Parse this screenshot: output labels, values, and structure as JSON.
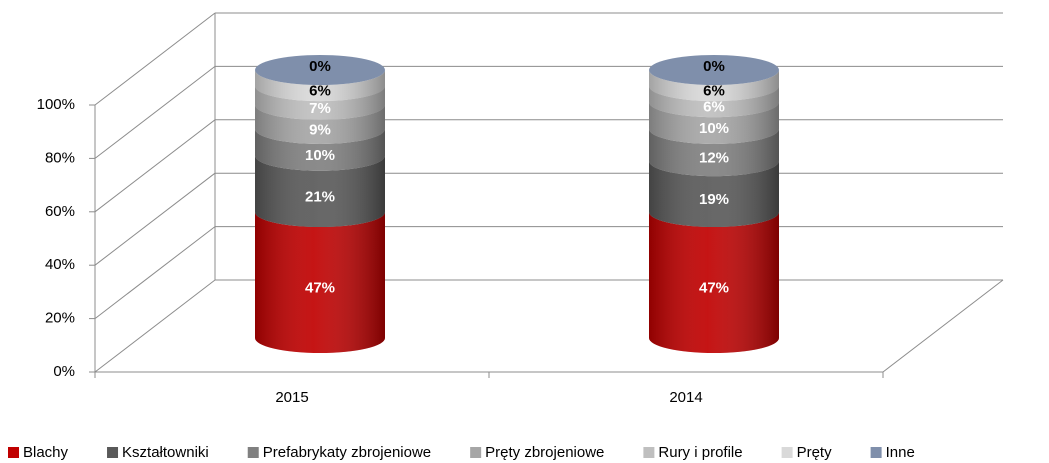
{
  "chart_data": {
    "type": "bar3d_cylinder_stacked",
    "categories": [
      "2015",
      "2014"
    ],
    "series": [
      {
        "name": "Blachy",
        "color": "#c00000",
        "label_color": "#ffffff",
        "values": [
          47,
          47
        ],
        "value_labels": [
          "47%",
          "47%"
        ]
      },
      {
        "name": "Kształtowniki",
        "color": "#595959",
        "label_color": "#ffffff",
        "values": [
          21,
          19
        ],
        "value_labels": [
          "21%",
          "19%"
        ]
      },
      {
        "name": "Prefabrykaty zbrojeniowe",
        "color": "#808080",
        "label_color": "#ffffff",
        "values": [
          10,
          12
        ],
        "value_labels": [
          "10%",
          "12%"
        ]
      },
      {
        "name": "Pręty zbrojeniowe",
        "color": "#a6a6a6",
        "label_color": "#ffffff",
        "values": [
          9,
          10
        ],
        "value_labels": [
          "9%",
          "10%"
        ]
      },
      {
        "name": "Rury i profile",
        "color": "#bfbfbf",
        "label_color": "#ffffff",
        "values": [
          7,
          6
        ],
        "value_labels": [
          "7%",
          "6%"
        ]
      },
      {
        "name": "Pręty",
        "color": "#d9d9d9",
        "label_color": "#000000",
        "values": [
          6,
          6
        ],
        "value_labels": [
          "6%",
          "6%"
        ]
      },
      {
        "name": "Inne",
        "color": "#7f8fab",
        "label_color": "#000000",
        "values": [
          0,
          0
        ],
        "value_labels": [
          "0%",
          "0%"
        ]
      }
    ],
    "ylim": [
      0,
      100
    ],
    "yticks": [
      {
        "value": 0,
        "label": "0%"
      },
      {
        "value": 20,
        "label": "20%"
      },
      {
        "value": 40,
        "label": "40%"
      },
      {
        "value": 60,
        "label": "60%"
      },
      {
        "value": 80,
        "label": "80%"
      },
      {
        "value": 100,
        "label": "100%"
      }
    ],
    "grid": true,
    "legend": "bottom"
  }
}
